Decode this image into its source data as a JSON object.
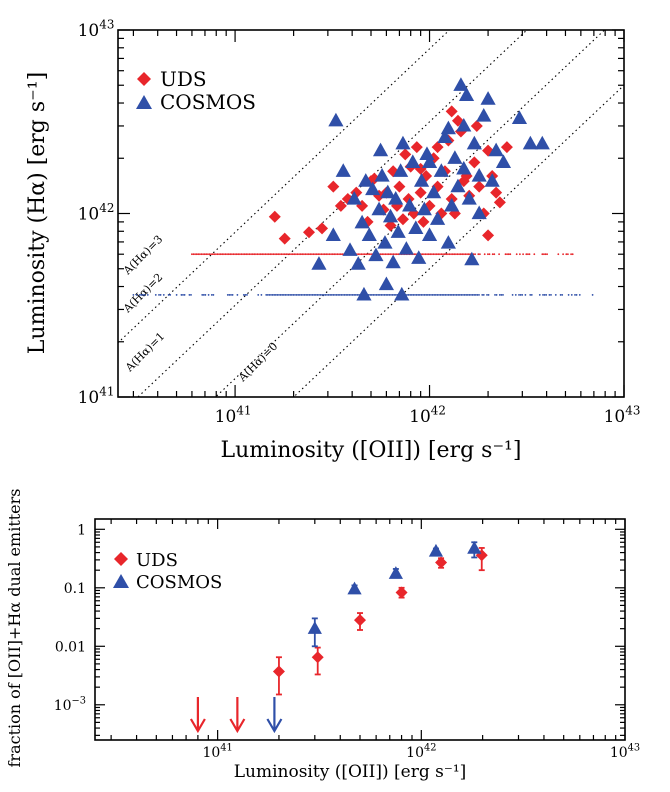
{
  "colors": {
    "UDS": "#e8262b",
    "COSMOS": "#2f4fa8"
  },
  "chart_data": [
    {
      "type": "scatter",
      "xlabel": "Luminosity ([OII]) [erg s⁻¹]",
      "ylabel": "Luminosity (Hα) [erg s⁻¹]",
      "xscale": "log",
      "yscale": "log",
      "xlim": [
        2.5e+40,
        1e+43
      ],
      "ylim": [
        1e+41,
        1e+43
      ],
      "x_ticks": [
        {
          "value": 1e+41,
          "mant": "10",
          "exp": "41"
        },
        {
          "value": 1e+42,
          "mant": "10",
          "exp": "42"
        },
        {
          "value": 1e+43,
          "mant": "10",
          "exp": "43"
        }
      ],
      "y_ticks": [
        {
          "value": 1e+41,
          "mant": "10",
          "exp": "41"
        },
        {
          "value": 1e+42,
          "mant": "10",
          "exp": "42"
        },
        {
          "value": 1e+43,
          "mant": "10",
          "exp": "43"
        }
      ],
      "legend_position": "top-left",
      "extinction_lines": [
        {
          "label": "A(Hα)=0",
          "factor": 0.5
        },
        {
          "label": "A(Hα)=1",
          "factor": 1.26
        },
        {
          "label": "A(Hα)=2",
          "factor": 3.16
        },
        {
          "label": "A(Hα)=3",
          "factor": 7.9
        }
      ],
      "upper_limit_rows": [
        {
          "series": "UDS",
          "y": 6e+41,
          "x_range": [
            6e+40,
            5.5e+42
          ]
        },
        {
          "series": "COSMOS",
          "y": 3.6e+41,
          "x_range": [
            3e+40,
            7e+42
          ]
        }
      ],
      "series": [
        {
          "name": "UDS",
          "marker": "diamond",
          "points": [
            [
              1.6e+41,
              9.6e+41
            ],
            [
              1.8e+41,
              7.3e+41
            ],
            [
              2.4e+41,
              7.9e+41
            ],
            [
              2.8e+41,
              8.3e+41
            ],
            [
              3.2e+41,
              1.4e+42
            ],
            [
              3.5e+41,
              1.1e+42
            ],
            [
              3.8e+41,
              1.2e+42
            ],
            [
              4.2e+41,
              1.3e+42
            ],
            [
              4.5e+41,
              1.1e+42
            ],
            [
              4.8e+41,
              9e+41
            ],
            [
              5e+41,
              1.5e+42
            ],
            [
              5.5e+41,
              1.25e+42
            ],
            [
              5.8e+41,
              1.05e+42
            ],
            [
              6e+41,
              1.3e+42
            ],
            [
              6.3e+41,
              8.6e+41
            ],
            [
              6.5e+41,
              1.7e+42
            ],
            [
              6.8e+41,
              1.1e+42
            ],
            [
              7e+41,
              1.4e+42
            ],
            [
              7.3e+41,
              9.3e+41
            ],
            [
              7.5e+41,
              2.1e+42
            ],
            [
              7.8e+41,
              1.2e+42
            ],
            [
              8e+41,
              1.8e+42
            ],
            [
              8.3e+41,
              1e+42
            ],
            [
              8.6e+41,
              2.3e+42
            ],
            [
              9e+41,
              1.3e+42
            ],
            [
              9.3e+41,
              9e+41
            ],
            [
              9.6e+41,
              1.6e+42
            ],
            [
              1e+42,
              1.1e+42
            ],
            [
              1.05e+42,
              2e+42
            ],
            [
              1.1e+42,
              1.4e+42
            ],
            [
              1.15e+42,
              1e+42
            ],
            [
              1.2e+42,
              1.7e+42
            ],
            [
              1.25e+42,
              2.5e+42
            ],
            [
              1.3e+42,
              1.2e+42
            ],
            [
              1.35e+42,
              1e+42
            ],
            [
              1.4e+42,
              3.2e+42
            ],
            [
              1.45e+42,
              2.8e+42
            ],
            [
              1.5e+42,
              1.5e+42
            ],
            [
              1.6e+42,
              1.25e+42
            ],
            [
              1.7e+42,
              1.9e+42
            ],
            [
              1.8e+42,
              1.4e+42
            ],
            [
              1.9e+42,
              1e+42
            ],
            [
              2e+42,
              2.2e+42
            ],
            [
              2.1e+42,
              1.6e+42
            ],
            [
              2.2e+42,
              1.3e+42
            ],
            [
              2.3e+42,
              1.15e+42
            ],
            [
              2e+42,
              7.6e+41
            ],
            [
              1.75e+42,
              3e+42
            ],
            [
              1.55e+42,
              1.6e+42
            ],
            [
              1.1e+42,
              2.3e+42
            ],
            [
              2.5e+42,
              2.3e+42
            ],
            [
              1.3e+42,
              3.6e+42
            ],
            [
              9e+41,
              1.75e+42
            ],
            [
              5.2e+41,
              1.55e+42
            ]
          ]
        },
        {
          "name": "COSMOS",
          "marker": "triangle",
          "points": [
            [
              2.7e+41,
              5.3e+41
            ],
            [
              3.2e+41,
              7.6e+41
            ],
            [
              3.6e+41,
              1.7e+42
            ],
            [
              3.9e+41,
              6.3e+41
            ],
            [
              4.1e+41,
              1.2e+42
            ],
            [
              4.3e+41,
              5.3e+41
            ],
            [
              4.5e+41,
              8.9e+41
            ],
            [
              4.7e+41,
              1.5e+42
            ],
            [
              4.9e+41,
              7.6e+41
            ],
            [
              5.1e+41,
              1.35e+42
            ],
            [
              5.3e+41,
              5.9e+41
            ],
            [
              5.5e+41,
              1.05e+42
            ],
            [
              5.7e+41,
              1.6e+42
            ],
            [
              5.9e+41,
              6.9e+41
            ],
            [
              6.1e+41,
              1.3e+42
            ],
            [
              6.3e+41,
              9.6e+41
            ],
            [
              6.5e+41,
              5.4e+41
            ],
            [
              6.7e+41,
              1.2e+42
            ],
            [
              6.9e+41,
              7.9e+41
            ],
            [
              7.1e+41,
              1.7e+42
            ],
            [
              7.3e+41,
              2.4e+42
            ],
            [
              7.6e+41,
              6.4e+41
            ],
            [
              7.9e+41,
              1.1e+42
            ],
            [
              8.2e+41,
              1.9e+42
            ],
            [
              8.5e+41,
              8.3e+41
            ],
            [
              8.8e+41,
              5.7e+41
            ],
            [
              9.1e+41,
              1.5e+42
            ],
            [
              9.4e+41,
              1.05e+42
            ],
            [
              9.7e+41,
              2.1e+42
            ],
            [
              1e+42,
              7.6e+41
            ],
            [
              1.05e+42,
              1.3e+42
            ],
            [
              1.1e+42,
              9.3e+41
            ],
            [
              1.15e+42,
              1.7e+42
            ],
            [
              1.2e+42,
              2.6e+42
            ],
            [
              1.25e+42,
              6.9e+41
            ],
            [
              1.3e+42,
              1.1e+42
            ],
            [
              1.35e+42,
              2e+42
            ],
            [
              1.4e+42,
              1.4e+42
            ],
            [
              1.45e+42,
              5e+42
            ],
            [
              1.5e+42,
              3e+42
            ],
            [
              1.6e+42,
              1.2e+42
            ],
            [
              1.7e+42,
              2.4e+42
            ],
            [
              1.8e+42,
              1.6e+42
            ],
            [
              1.9e+42,
              3.4e+42
            ],
            [
              2e+42,
              4.2e+42
            ],
            [
              2.2e+42,
              2.2e+42
            ],
            [
              2.4e+42,
              1.9e+42
            ],
            [
              2.9e+42,
              3.3e+42
            ],
            [
              3.3e+42,
              2.4e+42
            ],
            [
              3.8e+42,
              2.4e+42
            ],
            [
              1.55e+42,
              4.4e+42
            ],
            [
              1.25e+42,
              2.9e+42
            ],
            [
              3.3e+41,
              3.2e+42
            ],
            [
              4.6e+41,
              3.6e+41
            ],
            [
              7.2e+41,
              3.6e+41
            ],
            [
              1.5e+42,
              1.75e+42
            ],
            [
              2.1e+42,
              1.5e+42
            ],
            [
              1e+42,
              1.9e+42
            ],
            [
              5.6e+41,
              2.2e+42
            ],
            [
              1.65e+42,
              5.6e+41
            ],
            [
              1.8e+42,
              1e+42
            ],
            [
              6e+41,
              4.1e+41
            ]
          ]
        }
      ]
    },
    {
      "type": "scatter",
      "xlabel": "Luminosity ([OII]) [erg s⁻¹]",
      "ylabel": "fraction of [OII]+Hα dual emitters",
      "xscale": "log",
      "yscale": "log",
      "xlim": [
        2.5e+40,
        1e+43
      ],
      "ylim": [
        0.00025,
        1.5
      ],
      "x_ticks": [
        {
          "value": 1e+41,
          "mant": "10",
          "exp": "41"
        },
        {
          "value": 1e+42,
          "mant": "10",
          "exp": "42"
        },
        {
          "value": 1e+43,
          "mant": "10",
          "exp": "43"
        }
      ],
      "y_ticks": [
        {
          "value": 1,
          "text": "1"
        },
        {
          "value": 0.1,
          "text": "0.1"
        },
        {
          "value": 0.01,
          "text": "0.01"
        },
        {
          "value": 0.001,
          "mant": "10",
          "exp": "−3"
        }
      ],
      "legend_position": "top-left",
      "series": [
        {
          "name": "UDS",
          "marker": "diamond",
          "points": [
            {
              "x": 2e+41,
              "y": 0.0037,
              "ylo": 0.0015,
              "yhi": 0.0065
            },
            {
              "x": 3.1e+41,
              "y": 0.0065,
              "ylo": 0.0033,
              "yhi": 0.0095
            },
            {
              "x": 5e+41,
              "y": 0.028,
              "ylo": 0.019,
              "yhi": 0.037
            },
            {
              "x": 8e+41,
              "y": 0.083,
              "ylo": 0.068,
              "yhi": 0.1
            },
            {
              "x": 1.25e+42,
              "y": 0.27,
              "ylo": 0.22,
              "yhi": 0.32
            },
            {
              "x": 1.98e+42,
              "y": 0.36,
              "ylo": 0.2,
              "yhi": 0.48
            }
          ],
          "upper_limits_x": [
            8e+40,
            1.25e+41
          ]
        },
        {
          "name": "COSMOS",
          "marker": "triangle",
          "points": [
            {
              "x": 3e+41,
              "y": 0.02,
              "ylo": 0.01,
              "yhi": 0.03
            },
            {
              "x": 4.7e+41,
              "y": 0.095,
              "ylo": 0.082,
              "yhi": 0.11
            },
            {
              "x": 7.5e+41,
              "y": 0.175,
              "ylo": 0.15,
              "yhi": 0.21
            },
            {
              "x": 1.18e+42,
              "y": 0.42,
              "ylo": 0.36,
              "yhi": 0.47
            },
            {
              "x": 1.82e+42,
              "y": 0.47,
              "ylo": 0.33,
              "yhi": 0.6
            }
          ],
          "upper_limits_x": [
            1.9e+41
          ]
        }
      ]
    }
  ]
}
